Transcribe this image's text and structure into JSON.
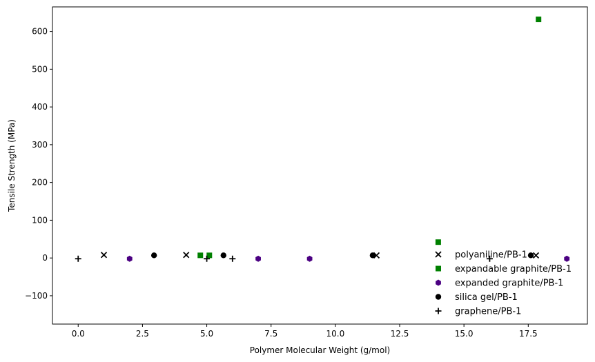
{
  "chart_data": {
    "type": "scatter",
    "xlabel": "Polymer Molecular Weight (g/mol)",
    "ylabel": "Tensile Strength (MPa)",
    "xlim": [
      -1,
      19.8
    ],
    "ylim": [
      -175,
      665
    ],
    "xticks": [
      0.0,
      2.5,
      5.0,
      7.5,
      10.0,
      12.5,
      15.0,
      17.5
    ],
    "xtick_labels": [
      "0.0",
      "2.5",
      "5.0",
      "7.5",
      "10.0",
      "12.5",
      "15.0",
      "17.5"
    ],
    "yticks": [
      -100,
      0,
      100,
      200,
      300,
      400,
      500,
      600
    ],
    "ytick_labels": [
      "−100",
      "0",
      "100",
      "200",
      "300",
      "400",
      "500",
      "600"
    ],
    "grid": false,
    "legend_position": "lower-right",
    "series": [
      {
        "name": "polyaniline/PB-1",
        "marker": "x",
        "color": "#000000",
        "points": [
          [
            1.0,
            8
          ],
          [
            4.2,
            8
          ],
          [
            11.6,
            7
          ],
          [
            17.8,
            7
          ]
        ]
      },
      {
        "name": "expandable graphite/PB-1",
        "marker": "square",
        "color": "#008000",
        "points": [
          [
            4.75,
            7
          ],
          [
            5.1,
            7
          ],
          [
            14.0,
            42
          ],
          [
            17.9,
            632
          ]
        ]
      },
      {
        "name": "expanded graphite/PB-1",
        "marker": "hexagon",
        "color": "#4b0082",
        "points": [
          [
            2.0,
            -2
          ],
          [
            7.0,
            -2
          ],
          [
            9.0,
            -2
          ],
          [
            19.0,
            -2
          ]
        ]
      },
      {
        "name": "silica gel/PB-1",
        "marker": "circle",
        "color": "#000000",
        "points": [
          [
            2.95,
            7
          ],
          [
            5.65,
            7
          ],
          [
            11.45,
            7
          ],
          [
            17.6,
            7
          ]
        ]
      },
      {
        "name": "graphene/PB-1",
        "marker": "plus",
        "color": "#000000",
        "points": [
          [
            0.0,
            -2
          ],
          [
            5.0,
            -2
          ],
          [
            6.0,
            -2
          ],
          [
            16.0,
            -2
          ]
        ]
      }
    ]
  }
}
